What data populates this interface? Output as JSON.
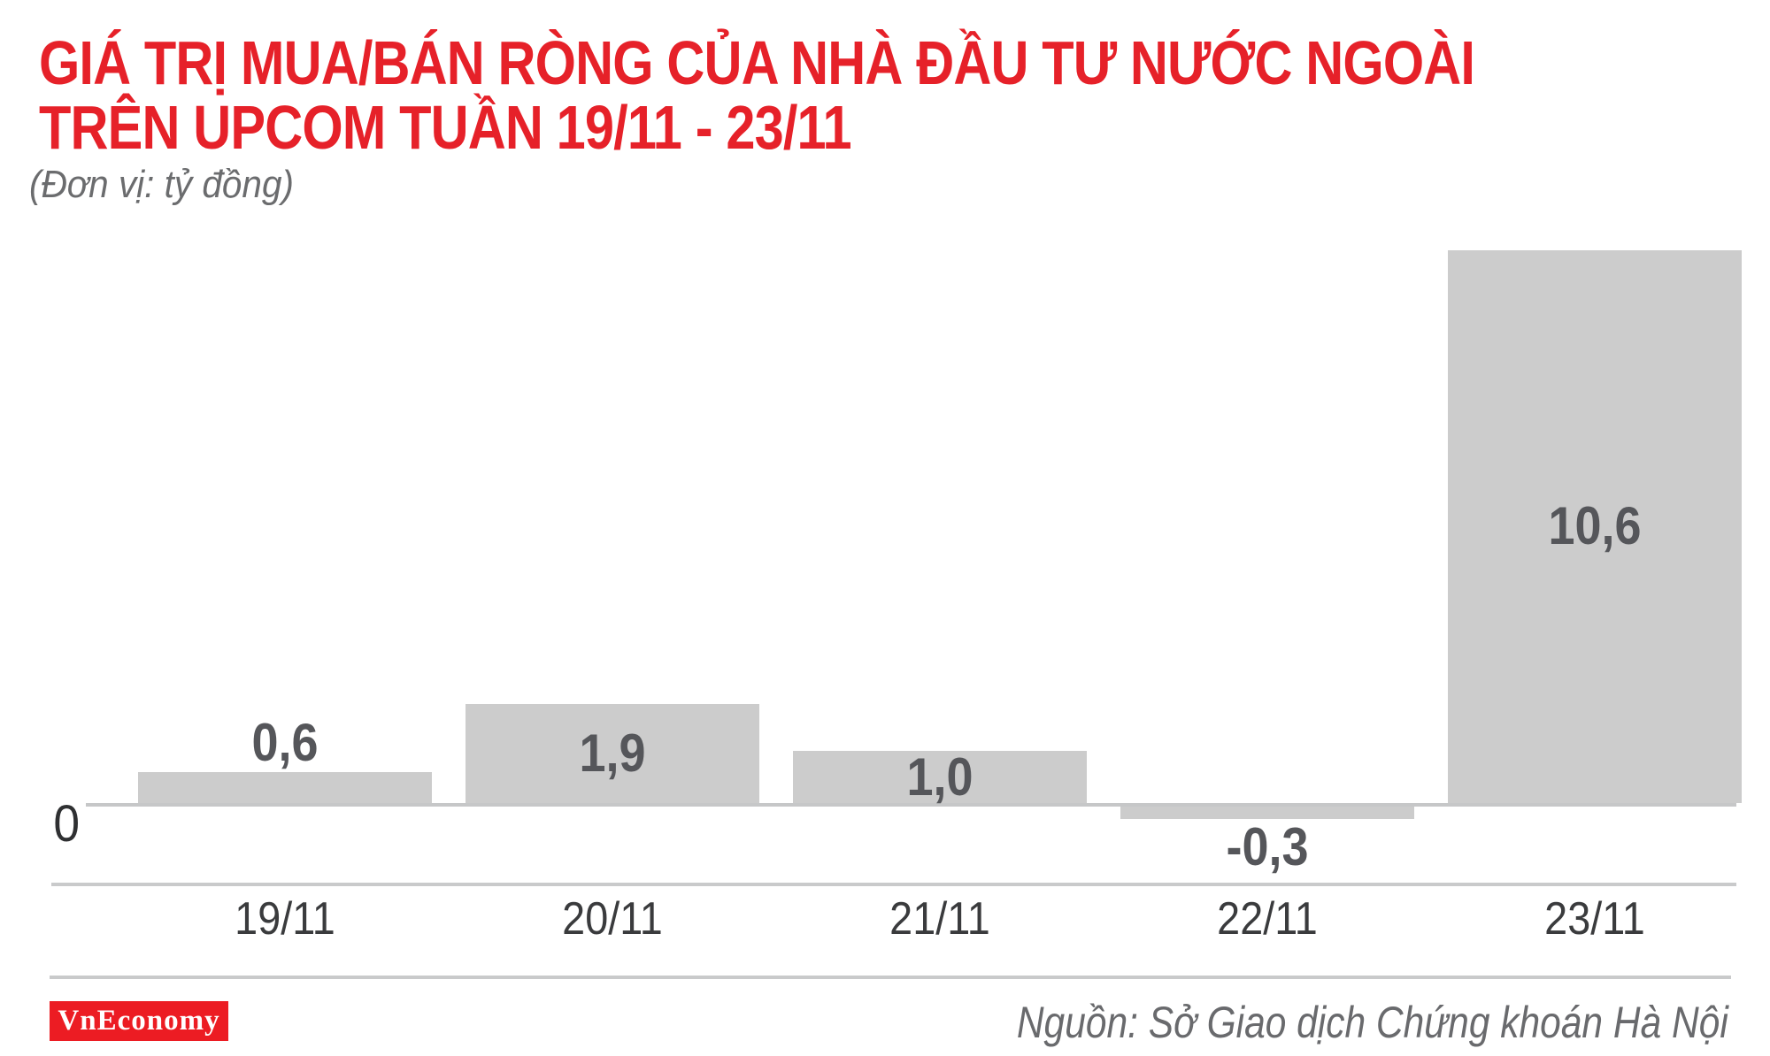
{
  "title": {
    "line1": "GIÁ TRỊ MUA/BÁN RÒNG CỦA NHÀ ĐẦU TƯ NƯỚC NGOÀI",
    "line2": "TRÊN UPCOM TUẦN 19/11 - 23/11"
  },
  "subtitle": "(Đơn vị: tỷ đồng)",
  "axis": {
    "zero_label": "0"
  },
  "chart_data": {
    "type": "bar",
    "title": "GIÁ TRỊ MUA/BÁN RÒNG CỦA NHÀ ĐẦU TƯ NƯỚC NGOÀI TRÊN UPCOM TUẦN 19/11 - 23/11",
    "unit": "tỷ đồng",
    "categories": [
      "19/11",
      "20/11",
      "21/11",
      "22/11",
      "23/11"
    ],
    "values": [
      0.6,
      1.9,
      1.0,
      -0.3,
      10.6
    ],
    "value_labels": [
      "0,6",
      "1,9",
      "1,0",
      "-0,3",
      "10,6"
    ],
    "label_placement": [
      "above",
      "inside",
      "inside",
      "below",
      "inside"
    ],
    "xlabel": "",
    "ylabel": "tỷ đồng",
    "ylim": [
      -0.5,
      11
    ],
    "grid": false,
    "legend": "none",
    "bar_color": "#cccccc",
    "value_label_color": "#55565a",
    "category_label_color": "#3a3b3d"
  },
  "footer": {
    "logo_text": "VnEconomy",
    "source": "Nguồn: Sở Giao dịch Chứng khoán Hà Nội"
  },
  "colors": {
    "title_red": "#e62129",
    "logo_red": "#ec1c23",
    "bar_gray": "#cccccc",
    "axis_line_gray": "#c6c7c8",
    "separator_gray": "#c9cacb"
  }
}
